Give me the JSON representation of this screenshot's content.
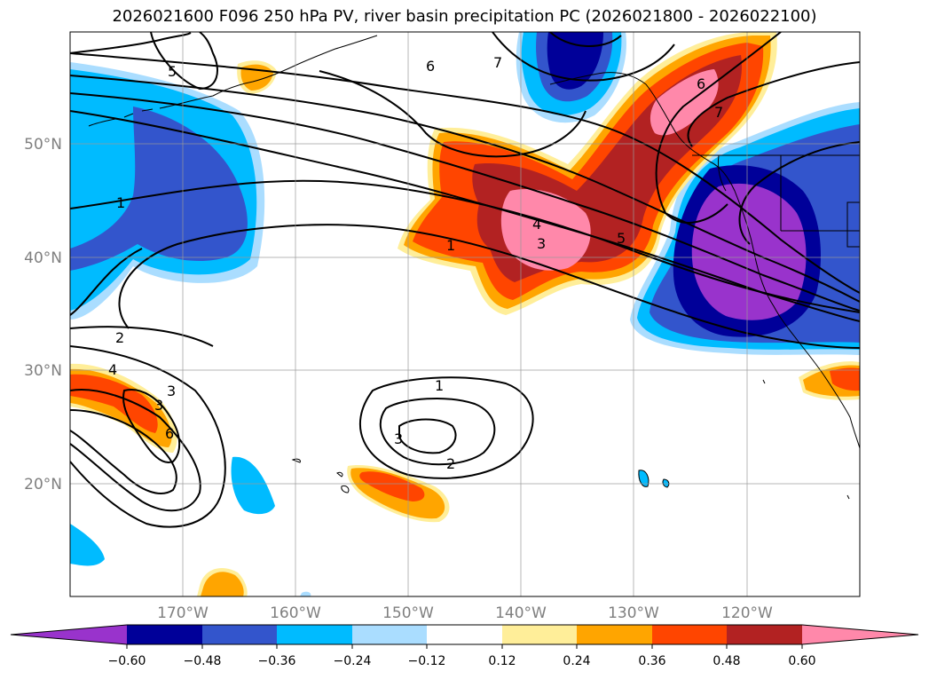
{
  "title": "2026021600 F096 250 hPa PV, river basin precipitation PC (2026021800 - 2026022100)",
  "map": {
    "lat_ticks": [
      "50°N",
      "40°N",
      "30°N",
      "20°N"
    ],
    "lon_ticks": [
      "170°W",
      "160°W",
      "150°W",
      "140°W",
      "130°W",
      "120°W"
    ],
    "grid": true,
    "contour_labels": [
      "5",
      "6",
      "7",
      "1",
      "4",
      "3",
      "5",
      "1",
      "6",
      "7",
      "2",
      "4",
      "3",
      "3",
      "6",
      "1",
      "3",
      "2"
    ],
    "colors": {
      "neg_060": "#9933cc",
      "neg_048": "#000099",
      "neg_036": "#3355cc",
      "neg_024": "#00bbff",
      "neg_012": "#aaddff",
      "neutral": "#ffffff",
      "pos_012": "#ffee99",
      "pos_024": "#ffa500",
      "pos_036": "#ff4500",
      "pos_048": "#b22222",
      "pos_060": "#ff88aa"
    }
  },
  "colorbar": {
    "ticks": [
      "−0.60",
      "−0.48",
      "−0.36",
      "−0.24",
      "−0.12",
      "0.12",
      "0.24",
      "0.36",
      "0.48",
      "0.60"
    ],
    "extend": "both"
  }
}
